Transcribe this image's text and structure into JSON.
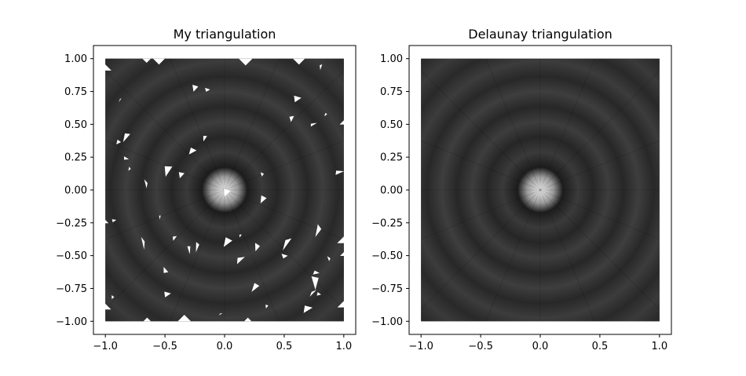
{
  "figure": {
    "background": "#ffffff"
  },
  "chart_data": [
    {
      "type": "heatmap",
      "title": "My triangulation",
      "xlim": [
        -1.1,
        1.1
      ],
      "ylim": [
        -1.1,
        1.1
      ],
      "xticks": [
        "−1.0",
        "−0.5",
        "0.0",
        "0.5",
        "1.0"
      ],
      "xtick_values": [
        -1.0,
        -0.5,
        0.0,
        0.5,
        1.0
      ],
      "yticks": [
        "1.00",
        "0.75",
        "0.50",
        "0.25",
        "0.00",
        "−0.25",
        "−0.50",
        "−0.75",
        "−1.00"
      ],
      "ytick_values": [
        1.0,
        0.75,
        0.5,
        0.25,
        0.0,
        -0.25,
        -0.5,
        -0.75,
        -1.0
      ],
      "data_extent": {
        "x": [
          -1.0,
          1.0
        ],
        "y": [
          -1.0,
          1.0
        ]
      },
      "field": "radial ripple, bright peak at (0, 0)",
      "colormap": "gray",
      "irregular_triangulation": true
    },
    {
      "type": "heatmap",
      "title": "Delaunay triangulation",
      "xlim": [
        -1.1,
        1.1
      ],
      "ylim": [
        -1.1,
        1.1
      ],
      "xticks": [
        "−1.0",
        "−0.5",
        "0.0",
        "0.5",
        "1.0"
      ],
      "xtick_values": [
        -1.0,
        -0.5,
        0.0,
        0.5,
        1.0
      ],
      "yticks": [
        "1.00",
        "0.75",
        "0.50",
        "0.25",
        "0.00",
        "−0.25",
        "−0.50",
        "−0.75",
        "−1.00"
      ],
      "ytick_values": [
        1.0,
        0.75,
        0.5,
        0.25,
        0.0,
        -0.25,
        -0.5,
        -0.75,
        -1.0
      ],
      "data_extent": {
        "x": [
          -1.0,
          1.0
        ],
        "y": [
          -1.0,
          1.0
        ]
      },
      "field": "radial ripple, bright peak at (0, 0)",
      "colormap": "gray",
      "irregular_triangulation": false
    }
  ]
}
